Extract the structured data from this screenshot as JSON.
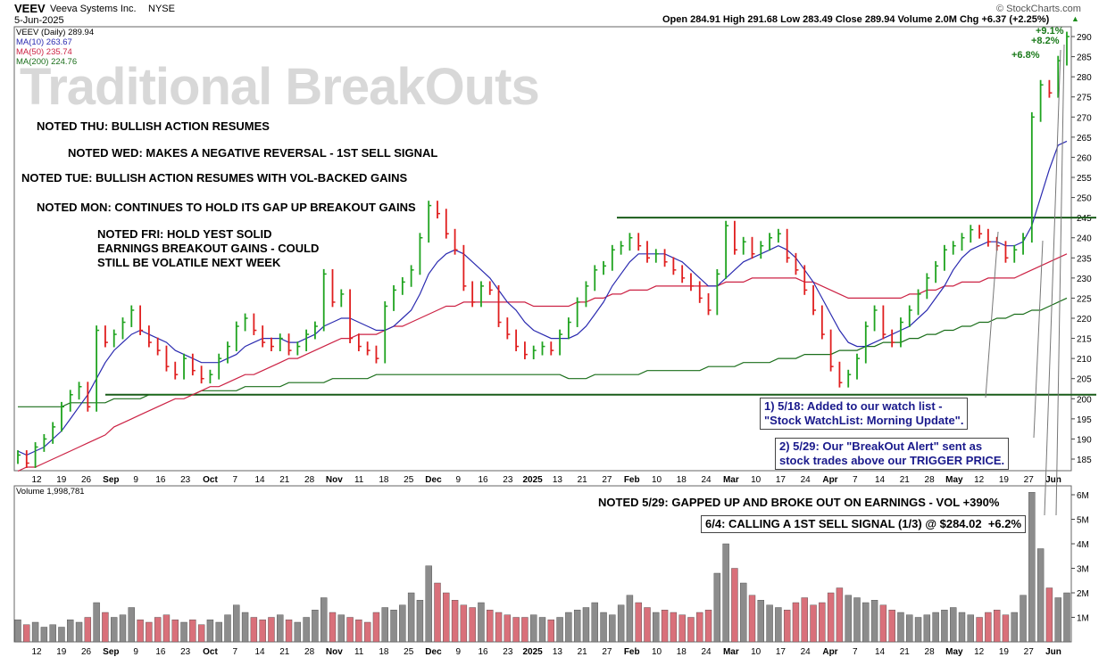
{
  "header": {
    "ticker": "VEEV",
    "company": "Veeva Systems Inc.",
    "exchange": "NYSE",
    "date": "5-Jun-2025",
    "source": "© StockCharts.com",
    "ohlc": "Open 284.91  High 291.68  Low 283.49  Close 289.94  Volume 2.0M  Chg +6.37 (+2.25%)",
    "chg_arrow": "▲"
  },
  "legend": {
    "price": "VEEV (Daily) 289.94",
    "ma10": "MA(10) 263.67",
    "ma50": "MA(50) 235.74",
    "ma200": "MA(200) 224.76",
    "volume": "Volume 1,998,781"
  },
  "watermark": "Traditional BreakOuts",
  "notes": {
    "thu": "NOTED THU: BULLISH ACTION RESUMES",
    "wed": "NOTED WED: MAKES A NEGATIVE REVERSAL - 1ST SELL SIGNAL",
    "tue": "NOTED TUE: BULLISH ACTION RESUMES WITH VOL-BACKED GAINS",
    "mon": "NOTED MON: CONTINUES TO HOLD ITS GAP UP BREAKOUT GAINS",
    "fri": "NOTED FRI: HOLD YEST SOLID\nEARNINGS BREAKOUT GAINS - COULD\nSTILL BE VOLATILE NEXT WEEK",
    "may29": "NOTED 5/29: GAPPED UP AND BROKE OUT ON EARNINGS - VOL +390%"
  },
  "callouts": {
    "c1": "1) 5/18: Added to our watch list -\n\"Stock WatchList: Morning Update\".",
    "c2": "2) 5/29: Our \"BreakOut Alert\" sent as\nstock trades above our TRIGGER PRICE.",
    "c3": "6/4: CALLING A 1ST SELL SIGNAL (1/3) @ $284.02  +6.2%"
  },
  "pct_labels": [
    "+9.1%",
    "+8.2%",
    "+6.8%"
  ],
  "colors": {
    "up": "#1fa31f",
    "down": "#e01e1e",
    "neutral": "#2a2aa0",
    "ma10": "#2b2bb0",
    "ma50": "#cc2244",
    "ma200": "#1a6e1a",
    "level": "#1a5c1a",
    "vol_up": "#8c8c8c",
    "vol_down": "#d9707a"
  },
  "chart_data": {
    "type": "ohlc",
    "title": "VEEV Veeva Systems Inc. NYSE",
    "y_ticks": [
      185,
      190,
      195,
      200,
      205,
      210,
      215,
      220,
      225,
      230,
      235,
      240,
      245,
      250,
      255,
      260,
      265,
      270,
      275,
      280,
      285,
      290
    ],
    "ylim": [
      181,
      292
    ],
    "horizontal_levels": [
      201,
      245
    ],
    "x_tick_labels": [
      "12",
      "19",
      "26",
      "Sep",
      "9",
      "16",
      "23",
      "Oct",
      "7",
      "14",
      "21",
      "28",
      "Nov",
      "11",
      "18",
      "25",
      "Dec",
      "9",
      "16",
      "23",
      "2025",
      "13",
      "21",
      "27",
      "Feb",
      "10",
      "18",
      "24",
      "Mar",
      "10",
      "17",
      "24",
      "Apr",
      "7",
      "14",
      "21",
      "28",
      "May",
      "12",
      "19",
      "27",
      "Jun"
    ],
    "price_closes": [
      186,
      184,
      188,
      190,
      193,
      198,
      201,
      203,
      198,
      217,
      214,
      216,
      219,
      222,
      217,
      214,
      212,
      208,
      206,
      210,
      207,
      205,
      206,
      210,
      213,
      218,
      220,
      217,
      214,
      213,
      215,
      212,
      213,
      216,
      218,
      231,
      224,
      226,
      215,
      213,
      212,
      210,
      223,
      227,
      229,
      232,
      240,
      248,
      246,
      241,
      237,
      228,
      224,
      228,
      227,
      219,
      216,
      213,
      211,
      212,
      213,
      212,
      216,
      219,
      224,
      228,
      232,
      233,
      237,
      238,
      240,
      238,
      235,
      236,
      234,
      232,
      230,
      228,
      225,
      222,
      231,
      243,
      237,
      239,
      236,
      238,
      240,
      241,
      235,
      232,
      227,
      222,
      216,
      208,
      204,
      206,
      210,
      218,
      222,
      216,
      214,
      219,
      222,
      226,
      230,
      233,
      237,
      238,
      240,
      242,
      241,
      239,
      238,
      235,
      237,
      240,
      270,
      278,
      276,
      284,
      290
    ],
    "ma10": [
      187,
      186,
      187,
      188,
      190,
      192,
      195,
      198,
      201,
      205,
      209,
      212,
      214,
      216,
      217,
      216,
      215,
      214,
      212,
      211,
      210,
      209,
      209,
      209,
      210,
      211,
      213,
      214,
      215,
      215,
      215,
      214,
      214,
      215,
      216,
      218,
      219,
      220,
      220,
      219,
      218,
      217,
      217,
      218,
      220,
      222,
      226,
      231,
      234,
      236,
      237,
      236,
      234,
      232,
      230,
      227,
      224,
      222,
      219,
      217,
      216,
      215,
      215,
      215,
      216,
      218,
      221,
      224,
      228,
      231,
      234,
      236,
      236,
      236,
      236,
      235,
      234,
      232,
      230,
      228,
      228,
      230,
      232,
      234,
      235,
      236,
      237,
      238,
      237,
      235,
      232,
      229,
      225,
      221,
      217,
      214,
      213,
      213,
      214,
      215,
      216,
      217,
      218,
      220,
      222,
      225,
      228,
      232,
      235,
      237,
      238,
      239,
      239,
      238,
      238,
      239,
      243,
      250,
      257,
      263,
      264
    ],
    "ma50": [
      182,
      183,
      183,
      184,
      185,
      186,
      187,
      188,
      189,
      190,
      191,
      193,
      194,
      195,
      196,
      197,
      198,
      199,
      200,
      200,
      201,
      202,
      203,
      203,
      204,
      205,
      206,
      206,
      207,
      208,
      209,
      210,
      210,
      211,
      212,
      213,
      214,
      215,
      215,
      216,
      216,
      216,
      217,
      218,
      218,
      219,
      220,
      221,
      222,
      223,
      223,
      224,
      224,
      224,
      224,
      224,
      224,
      224,
      224,
      223,
      223,
      223,
      223,
      223,
      224,
      224,
      225,
      225,
      226,
      226,
      227,
      227,
      227,
      228,
      228,
      228,
      228,
      228,
      228,
      228,
      228,
      229,
      229,
      229,
      230,
      230,
      230,
      230,
      230,
      230,
      229,
      229,
      228,
      227,
      226,
      225,
      225,
      225,
      225,
      225,
      225,
      225,
      226,
      226,
      227,
      227,
      228,
      228,
      229,
      229,
      229,
      230,
      230,
      230,
      230,
      231,
      232,
      233,
      234,
      235,
      236
    ],
    "ma200": [
      198,
      198,
      198,
      198,
      198,
      198,
      199,
      199,
      199,
      199,
      199,
      200,
      200,
      200,
      200,
      201,
      201,
      201,
      201,
      201,
      201,
      202,
      202,
      202,
      202,
      202,
      203,
      203,
      203,
      203,
      203,
      204,
      204,
      204,
      204,
      204,
      205,
      205,
      205,
      205,
      205,
      206,
      206,
      206,
      206,
      206,
      206,
      206,
      206,
      206,
      206,
      206,
      206,
      206,
      206,
      206,
      206,
      206,
      206,
      206,
      206,
      206,
      206,
      205,
      205,
      205,
      206,
      206,
      206,
      206,
      206,
      206,
      207,
      207,
      207,
      207,
      207,
      207,
      207,
      208,
      208,
      208,
      208,
      209,
      209,
      209,
      209,
      210,
      210,
      210,
      211,
      211,
      211,
      211,
      212,
      212,
      212,
      213,
      213,
      214,
      214,
      214,
      215,
      215,
      216,
      216,
      217,
      217,
      218,
      218,
      219,
      219,
      220,
      220,
      221,
      221,
      222,
      222,
      223,
      224,
      225
    ],
    "volume_values_m": [
      0.9,
      0.7,
      0.8,
      0.6,
      0.7,
      0.6,
      0.9,
      0.8,
      1.0,
      1.6,
      1.2,
      1.0,
      1.1,
      1.4,
      0.9,
      0.8,
      1.0,
      1.1,
      0.9,
      0.8,
      0.9,
      0.7,
      0.9,
      0.8,
      1.1,
      1.5,
      1.2,
      1.0,
      0.9,
      1.0,
      1.1,
      0.9,
      0.8,
      1.0,
      1.3,
      1.8,
      1.2,
      1.1,
      1.0,
      0.9,
      0.8,
      1.2,
      1.4,
      1.3,
      1.5,
      2.0,
      1.7,
      3.1,
      2.4,
      2.0,
      1.7,
      1.5,
      1.4,
      1.6,
      1.3,
      1.2,
      1.1,
      1.0,
      1.0,
      1.1,
      1.0,
      0.9,
      1.0,
      1.2,
      1.3,
      1.4,
      1.6,
      1.2,
      1.1,
      1.5,
      1.9,
      1.6,
      1.4,
      1.2,
      1.3,
      1.2,
      1.1,
      1.0,
      1.2,
      1.3,
      2.8,
      4.0,
      3.0,
      2.4,
      1.9,
      1.7,
      1.5,
      1.4,
      1.3,
      1.6,
      1.8,
      1.5,
      1.6,
      2.0,
      2.2,
      1.9,
      1.8,
      1.6,
      1.7,
      1.5,
      1.3,
      1.2,
      1.1,
      1.0,
      1.1,
      1.2,
      1.3,
      1.4,
      1.2,
      1.1,
      1.0,
      1.2,
      1.3,
      1.1,
      1.2,
      1.9,
      6.1,
      3.8,
      2.2,
      1.8,
      2.0
    ],
    "volume_ticks": [
      "1M",
      "2M",
      "3M",
      "4M",
      "5M",
      "6M"
    ]
  }
}
